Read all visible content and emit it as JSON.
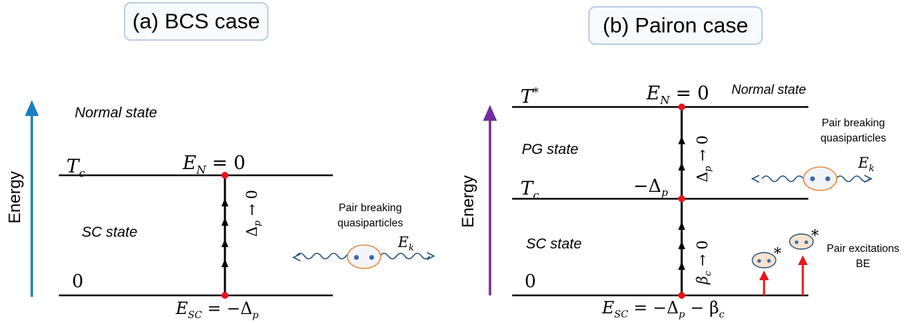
{
  "panel_a": {
    "title": "(a) BCS case",
    "axis_label": "Energy",
    "normal_state": "Normal state",
    "sc_state": "SC state",
    "tc_label": "T",
    "tc_sub": "c",
    "zero_label": "0",
    "en_label": "E",
    "en_sub": "N",
    "en_rhs": " = 0",
    "esc_label": "E",
    "esc_sub": "SC",
    "esc_rhs": " = −Δ",
    "esc_rhs_sub": "p",
    "delta_label": "Δ",
    "delta_sub": "p",
    "delta_rhs": " → 0",
    "pair_breaking": "Pair breaking",
    "quasiparticles": "quasiparticles",
    "ek_label": "E",
    "ek_sub": "k"
  },
  "panel_b": {
    "title": "(b) Pairon case",
    "axis_label": "Energy",
    "normal_state": "Normal state",
    "pg_state": "PG state",
    "sc_state": "SC state",
    "tstar_label": "T",
    "tstar_sup": "*",
    "tc_label": "T",
    "tc_sub": "c",
    "zero_label": "0",
    "en_label": "E",
    "en_sub": "N",
    "en_rhs": " = 0",
    "mdelta_label": "−Δ",
    "mdelta_sub": "p",
    "delta_label": "Δ",
    "delta_sub": "p",
    "delta_rhs": " → 0",
    "beta_label": "β",
    "beta_sub": "c",
    "beta_rhs": " → 0",
    "esc_label": "E",
    "esc_sub": "SC",
    "esc_rhs": " = −Δ",
    "esc_rhs_sub": "p",
    "esc_rhs2": " − β",
    "esc_rhs2_sub": "c",
    "pair_breaking": "Pair breaking",
    "quasiparticles": "quasiparticles",
    "ek_label": "E",
    "ek_sub": "k",
    "pair_excitations": "Pair excitations",
    "be": "BE",
    "star1": "*",
    "star2": "*"
  },
  "colors": {
    "axis_a": "#1a7fc4",
    "axis_b": "#7030a0",
    "red_dot": "#e8141c",
    "wave": "#1f4e79",
    "pair_ring": "#e8883a",
    "pair_fill": "#f3f4f9",
    "electron": "#3b6aa8",
    "exc_fill": "#f6e3cf",
    "exc_arrow": "#e8141c",
    "title_border": "#b9cde3"
  }
}
